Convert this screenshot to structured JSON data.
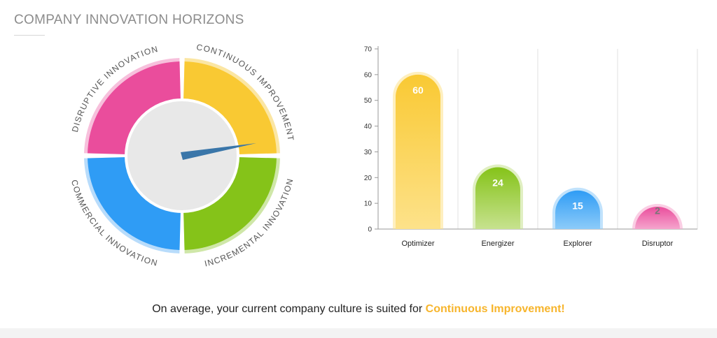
{
  "page": {
    "title": "COMPANY INNOVATION HORIZONS"
  },
  "gauge": {
    "segments": [
      {
        "label": "CONTINUOUS IMPROVEMENT",
        "color": "#f9c933",
        "halo": "#fbe6a3"
      },
      {
        "label": "INCREMENTAL INNOVATION",
        "color": "#85c319",
        "halo": "#cfe7a8"
      },
      {
        "label": "COMMERCIAL INNOVATION",
        "color": "#2f9cf5",
        "halo": "#b8dcfb"
      },
      {
        "label": "DISRUPTIVE INNOVATION",
        "color": "#ea4d9c",
        "halo": "#f7c0dc"
      }
    ],
    "hub_color": "#e8e8e8",
    "needle_color": "#3a76a9",
    "needle_direction": "Continuous Improvement"
  },
  "chart_data": {
    "type": "bar",
    "categories": [
      "Optimizer",
      "Energizer",
      "Explorer",
      "Disruptor"
    ],
    "values": [
      60,
      24,
      15,
      2
    ],
    "colors": [
      "#f9c933",
      "#85c319",
      "#2f9cf5",
      "#ea4d9c"
    ],
    "bar_gradient_bottom": [
      "#fde28a",
      "#c7e28f",
      "#8ccbf9",
      "#f5a5cd"
    ],
    "value_labels": [
      "60",
      "24",
      "15",
      "2"
    ],
    "value_label_colors": [
      "#ffffff",
      "#ffffff",
      "#ffffff",
      "#777777"
    ],
    "yticks": [
      "0",
      "10",
      "20",
      "30",
      "40",
      "50",
      "60",
      "70"
    ],
    "ylim": [
      0,
      70
    ],
    "grid": "vertical",
    "xlabel": "",
    "ylabel": ""
  },
  "summary": {
    "prefix": "On average, your current company culture is suited for ",
    "highlight": "Continuous Improvement!"
  }
}
